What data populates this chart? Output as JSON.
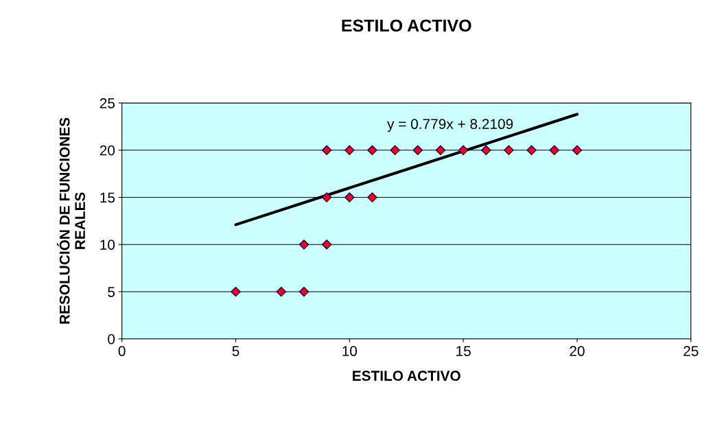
{
  "chart_data": {
    "type": "scatter",
    "title": "ESTILO ACTIVO",
    "xlabel": "ESTILO ACTIVO",
    "ylabel": "RESOLUCIÓN DE FUNCIONES\nREALES",
    "series": [
      {
        "type": "scatter",
        "color": "#ff0000",
        "marker": "diamond",
        "x": [
          5,
          7,
          8,
          8,
          9,
          9,
          10,
          11,
          9,
          10,
          11,
          12,
          13,
          14,
          15,
          16,
          17,
          18,
          19,
          20
        ],
        "values": [
          5,
          5,
          5,
          10,
          10,
          15,
          15,
          15,
          20,
          20,
          20,
          20,
          20,
          20,
          20,
          20,
          20,
          20,
          20,
          20
        ]
      },
      {
        "type": "line",
        "color": "#000000",
        "marker": "none",
        "x": [
          5,
          20
        ],
        "values": [
          12.1,
          23.8
        ]
      }
    ],
    "annotations": [
      "y = 0.779x + 8.2109"
    ],
    "xlim": [
      0,
      25
    ],
    "xticks": [
      0,
      5,
      10,
      15,
      20,
      25
    ],
    "ylim": [
      0,
      25
    ],
    "yticks": [
      0,
      5,
      10,
      15,
      20,
      25
    ],
    "grid": "y",
    "legend": false
  }
}
